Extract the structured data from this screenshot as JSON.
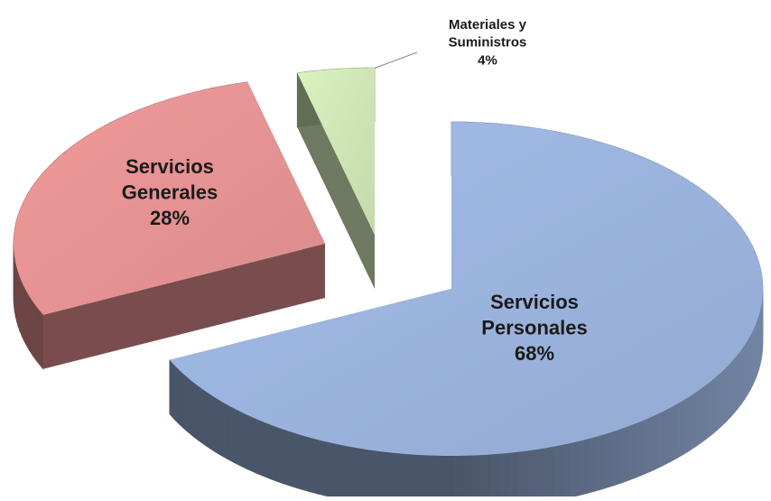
{
  "chart_data": {
    "type": "pie",
    "categories": [
      "Servicios Personales",
      "Servicios Generales",
      "Materiales y Suministros"
    ],
    "values": [
      68,
      28,
      4
    ],
    "value_labels": [
      "68%",
      "28%",
      "4%"
    ],
    "colors": [
      "#a3bde9",
      "#f29a9a",
      "#d9f2bf"
    ]
  }
}
